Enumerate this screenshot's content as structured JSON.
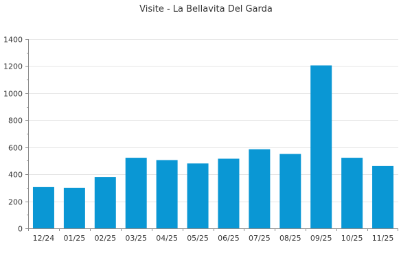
{
  "chart_data": {
    "type": "bar",
    "title": "Visite - La Bellavita Del Garda",
    "xlabel": "",
    "ylabel": "",
    "categories": [
      "12/24",
      "01/25",
      "02/25",
      "03/25",
      "04/25",
      "05/25",
      "06/25",
      "07/25",
      "08/25",
      "09/25",
      "10/25",
      "11/25"
    ],
    "values": [
      305,
      300,
      380,
      522,
      505,
      480,
      515,
      585,
      550,
      1205,
      522,
      462
    ],
    "ylim": [
      0,
      1400
    ],
    "yticks": [
      0,
      200,
      400,
      600,
      800,
      1000,
      1200,
      1400
    ],
    "grid": true,
    "legend": "none",
    "colors": {
      "bar": "#0a97d4",
      "grid": "#e6e6e6",
      "axis": "#8c8c8c",
      "text": "#333333"
    }
  }
}
